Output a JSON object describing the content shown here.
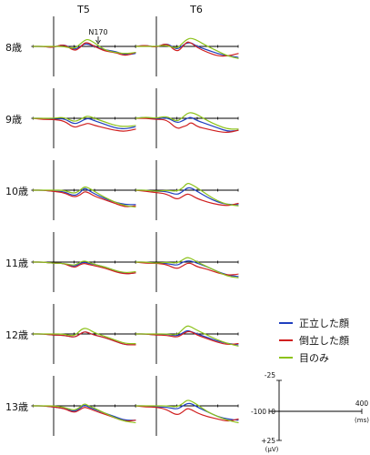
{
  "chart_data": {
    "type": "line",
    "columns": [
      "T5",
      "T6"
    ],
    "rows": [
      "8歳",
      "9歳",
      "10歳",
      "11歳",
      "12歳",
      "13歳"
    ],
    "annotation": "N170",
    "legend": {
      "placement": "right",
      "entries": [
        {
          "label": "正立した顔",
          "color": "#1f3fbf"
        },
        {
          "label": "倒立した顔",
          "color": "#d01f1f"
        },
        {
          "label": "目のみ",
          "color": "#8cc21a"
        }
      ]
    },
    "scale": {
      "x_ticks": [
        "-100",
        "0",
        "400"
      ],
      "x_unit": "(ms)",
      "y_ticks": [
        "-25",
        "+25"
      ],
      "y_unit": "(μV)",
      "xlim": [
        -100,
        400
      ],
      "ylim": [
        -25,
        25
      ],
      "y_inverted": true
    },
    "series_keys": [
      "upright",
      "inverted",
      "eyes"
    ],
    "x": [
      -100,
      -50,
      0,
      50,
      100,
      130,
      150,
      170,
      200,
      250,
      300,
      350,
      400
    ],
    "panels": [
      {
        "row": "8歳",
        "column": "T5",
        "upright": [
          0,
          0,
          1,
          -2,
          3,
          0,
          -2,
          -2,
          0,
          3,
          4,
          7,
          6
        ],
        "inverted": [
          0,
          0,
          1,
          -2,
          4,
          1,
          -3,
          -3,
          0,
          4,
          5,
          8,
          5
        ],
        "eyes": [
          0,
          0,
          0,
          0,
          2,
          -2,
          -5,
          -6,
          -3,
          3,
          5,
          6,
          5
        ]
      },
      {
        "row": "8歳",
        "column": "T6",
        "upright": [
          0,
          -1,
          1,
          -3,
          3,
          -1,
          -3,
          -3,
          0,
          3,
          6,
          8,
          9
        ],
        "inverted": [
          0,
          -1,
          1,
          -3,
          5,
          0,
          -4,
          -3,
          1,
          5,
          8,
          8,
          6
        ],
        "eyes": [
          0,
          0,
          0,
          -1,
          2,
          -3,
          -6,
          -7,
          -5,
          0,
          4,
          8,
          10
        ]
      },
      {
        "row": "9歳",
        "column": "T5",
        "upright": [
          0,
          0,
          1,
          0,
          5,
          3,
          1,
          0,
          2,
          5,
          8,
          9,
          7
        ],
        "inverted": [
          0,
          1,
          1,
          2,
          8,
          6,
          5,
          4,
          6,
          8,
          10,
          11,
          9
        ],
        "eyes": [
          0,
          0,
          0,
          -1,
          3,
          1,
          -1,
          -2,
          0,
          3,
          6,
          7,
          6
        ]
      },
      {
        "row": "9歳",
        "column": "T6",
        "upright": [
          0,
          -1,
          1,
          -1,
          4,
          2,
          0,
          -1,
          2,
          5,
          8,
          11,
          10
        ],
        "inverted": [
          0,
          0,
          1,
          1,
          9,
          7,
          6,
          3,
          7,
          9,
          11,
          12,
          10
        ],
        "eyes": [
          0,
          -1,
          0,
          -2,
          3,
          -1,
          -4,
          -5,
          -3,
          2,
          6,
          9,
          9
        ]
      },
      {
        "row": "10歳",
        "column": "T5",
        "upright": [
          0,
          0,
          1,
          1,
          5,
          2,
          -2,
          0,
          3,
          7,
          10,
          12,
          12
        ],
        "inverted": [
          0,
          0,
          1,
          2,
          6,
          4,
          1,
          2,
          5,
          8,
          11,
          14,
          13
        ],
        "eyes": [
          0,
          0,
          0,
          0,
          3,
          0,
          -3,
          -2,
          1,
          6,
          10,
          13,
          14
        ]
      },
      {
        "row": "10歳",
        "column": "T6",
        "upright": [
          0,
          0,
          1,
          1,
          4,
          1,
          -2,
          -2,
          1,
          6,
          10,
          12,
          12
        ],
        "inverted": [
          0,
          1,
          2,
          3,
          8,
          5,
          3,
          4,
          7,
          10,
          12,
          13,
          11
        ],
        "eyes": [
          0,
          0,
          1,
          0,
          1,
          -2,
          -6,
          -5,
          -2,
          4,
          9,
          12,
          13
        ]
      },
      {
        "row": "11歳",
        "column": "T5",
        "upright": [
          0,
          0,
          1,
          1,
          4,
          1,
          0,
          1,
          2,
          4,
          7,
          10,
          9
        ],
        "inverted": [
          0,
          0,
          1,
          1,
          5,
          2,
          1,
          2,
          3,
          5,
          8,
          10,
          9
        ],
        "eyes": [
          0,
          0,
          1,
          1,
          3,
          0,
          -1,
          0,
          2,
          4,
          7,
          9,
          8
        ]
      },
      {
        "row": "11歳",
        "column": "T6",
        "upright": [
          0,
          0,
          1,
          1,
          3,
          0,
          -1,
          -1,
          1,
          4,
          8,
          11,
          12
        ],
        "inverted": [
          0,
          1,
          1,
          2,
          6,
          3,
          1,
          1,
          4,
          6,
          9,
          11,
          10
        ],
        "eyes": [
          0,
          0,
          1,
          0,
          1,
          -2,
          -4,
          -3,
          0,
          4,
          8,
          12,
          13
        ]
      },
      {
        "row": "12歳",
        "column": "T5",
        "upright": [
          0,
          0,
          1,
          1,
          3,
          0,
          -2,
          -1,
          1,
          3,
          6,
          9,
          9
        ],
        "inverted": [
          0,
          0,
          1,
          1,
          3,
          0,
          -2,
          -1,
          1,
          3,
          6,
          9,
          9
        ],
        "eyes": [
          0,
          0,
          0,
          0,
          2,
          -3,
          -5,
          -4,
          -1,
          2,
          5,
          8,
          8
        ]
      },
      {
        "row": "12歳",
        "column": "T6",
        "upright": [
          0,
          0,
          1,
          0,
          2,
          -1,
          -3,
          -2,
          0,
          3,
          6,
          8,
          9
        ],
        "inverted": [
          0,
          0,
          1,
          1,
          3,
          0,
          -2,
          -2,
          1,
          4,
          7,
          9,
          8
        ],
        "eyes": [
          0,
          0,
          0,
          0,
          1,
          -4,
          -7,
          -6,
          -3,
          1,
          5,
          8,
          10
        ]
      },
      {
        "row": "13歳",
        "column": "T5",
        "upright": [
          0,
          0,
          1,
          2,
          5,
          2,
          -1,
          1,
          3,
          6,
          9,
          12,
          12
        ],
        "inverted": [
          0,
          0,
          1,
          2,
          6,
          3,
          1,
          2,
          4,
          7,
          10,
          13,
          12
        ],
        "eyes": [
          0,
          0,
          0,
          1,
          4,
          1,
          -2,
          0,
          2,
          6,
          10,
          13,
          14
        ]
      },
      {
        "row": "13歳",
        "column": "T6",
        "upright": [
          0,
          0,
          1,
          1,
          3,
          0,
          -2,
          -2,
          1,
          5,
          9,
          11,
          12
        ],
        "inverted": [
          0,
          1,
          1,
          3,
          8,
          5,
          2,
          3,
          6,
          9,
          11,
          13,
          11
        ],
        "eyes": [
          0,
          0,
          0,
          0,
          1,
          -2,
          -5,
          -4,
          -1,
          5,
          9,
          12,
          14
        ]
      }
    ]
  }
}
